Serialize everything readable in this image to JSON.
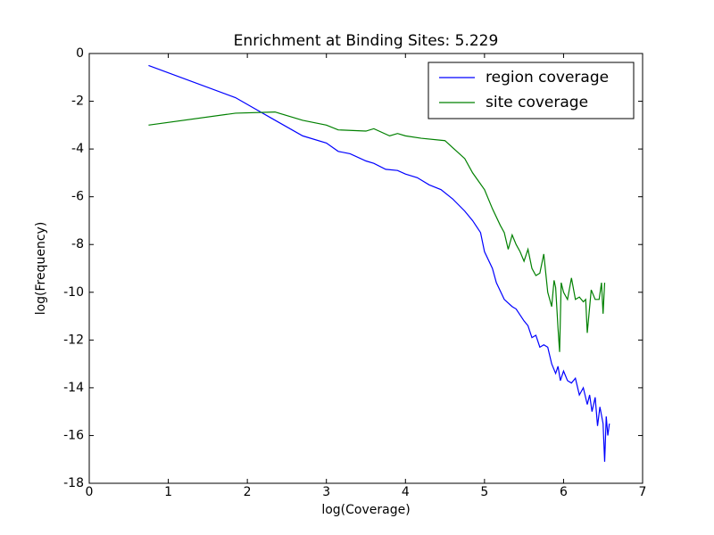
{
  "chart_data": {
    "type": "line",
    "title": "Enrichment at Binding Sites: 5.229",
    "xlabel": "log(Coverage)",
    "ylabel": "log(Frequency)",
    "xlim": [
      0,
      7
    ],
    "ylim": [
      -18,
      0
    ],
    "xticks": [
      0,
      1,
      2,
      3,
      4,
      5,
      6,
      7
    ],
    "yticks": [
      -18,
      -16,
      -14,
      -12,
      -10,
      -8,
      -6,
      -4,
      -2,
      0
    ],
    "legend": "upper right",
    "series": [
      {
        "name": "region coverage",
        "color": "#0000ff",
        "x": [
          0.75,
          1.85,
          2.3,
          2.7,
          3.0,
          3.15,
          3.3,
          3.5,
          3.6,
          3.75,
          3.9,
          4.0,
          4.15,
          4.3,
          4.45,
          4.6,
          4.75,
          4.85,
          4.95,
          5.0,
          5.1,
          5.15,
          5.25,
          5.35,
          5.4,
          5.5,
          5.55,
          5.6,
          5.65,
          5.7,
          5.75,
          5.8,
          5.85,
          5.9,
          5.93,
          5.96,
          6.0,
          6.05,
          6.1,
          6.15,
          6.2,
          6.25,
          6.3,
          6.33,
          6.36,
          6.4,
          6.43,
          6.46,
          6.5,
          6.52,
          6.54,
          6.56,
          6.58
        ],
        "values": [
          -0.5,
          -1.85,
          -2.7,
          -3.45,
          -3.75,
          -4.1,
          -4.2,
          -4.5,
          -4.6,
          -4.85,
          -4.9,
          -5.05,
          -5.2,
          -5.5,
          -5.7,
          -6.1,
          -6.6,
          -7.0,
          -7.5,
          -8.3,
          -9.0,
          -9.6,
          -10.3,
          -10.6,
          -10.7,
          -11.2,
          -11.4,
          -11.9,
          -11.8,
          -12.3,
          -12.2,
          -12.3,
          -13.0,
          -13.4,
          -13.1,
          -13.7,
          -13.3,
          -13.7,
          -13.8,
          -13.6,
          -14.3,
          -14.0,
          -14.7,
          -14.3,
          -15.0,
          -14.4,
          -15.6,
          -14.8,
          -15.5,
          -17.1,
          -15.2,
          -16.0,
          -15.5
        ]
      },
      {
        "name": "site coverage",
        "color": "#008000",
        "x": [
          0.75,
          1.85,
          2.35,
          2.7,
          3.0,
          3.15,
          3.5,
          3.6,
          3.8,
          3.9,
          4.0,
          4.2,
          4.5,
          4.6,
          4.75,
          4.85,
          5.0,
          5.1,
          5.2,
          5.25,
          5.3,
          5.35,
          5.4,
          5.45,
          5.5,
          5.55,
          5.6,
          5.65,
          5.7,
          5.75,
          5.8,
          5.85,
          5.88,
          5.9,
          5.93,
          5.95,
          5.97,
          6.0,
          6.05,
          6.1,
          6.15,
          6.2,
          6.25,
          6.28,
          6.3,
          6.35,
          6.4,
          6.45,
          6.48,
          6.5,
          6.52
        ],
        "values": [
          -3.0,
          -2.5,
          -2.45,
          -2.8,
          -3.0,
          -3.2,
          -3.25,
          -3.15,
          -3.45,
          -3.35,
          -3.45,
          -3.55,
          -3.65,
          -3.95,
          -4.4,
          -5.0,
          -5.7,
          -6.5,
          -7.2,
          -7.5,
          -8.2,
          -7.6,
          -8.0,
          -8.3,
          -8.7,
          -8.2,
          -9.0,
          -9.3,
          -9.2,
          -8.4,
          -10.0,
          -10.6,
          -9.5,
          -9.8,
          -11.5,
          -12.5,
          -9.6,
          -10.0,
          -10.3,
          -9.4,
          -10.3,
          -10.2,
          -10.4,
          -10.3,
          -11.7,
          -9.9,
          -10.3,
          -10.3,
          -9.6,
          -10.9,
          -9.6
        ]
      }
    ]
  }
}
